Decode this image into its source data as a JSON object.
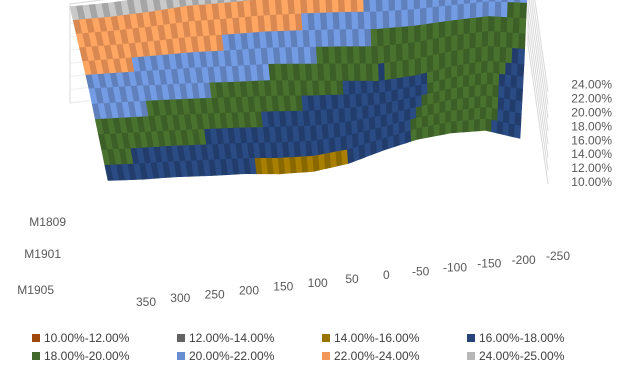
{
  "chart_data": {
    "type": "surface-3d",
    "x_ticks": [
      "350",
      "300",
      "250",
      "200",
      "150",
      "100",
      "50",
      "0",
      "-50",
      "-100",
      "-150",
      "-200",
      "-250"
    ],
    "depth_ticks": [
      "M1809",
      "M1901",
      "M1905"
    ],
    "z_ticks": [
      "10.00%",
      "12.00%",
      "14.00%",
      "16.00%",
      "18.00%",
      "20.00%",
      "22.00%",
      "24.00%"
    ],
    "zlim": [
      10,
      25
    ],
    "series": [
      {
        "name": "M1809",
        "values": [
          24.6,
          24.4,
          24.5,
          24.8,
          24.6,
          24.5,
          24.2,
          23.8,
          23.2,
          22.6,
          22.1,
          21.8,
          21.0
        ]
      },
      {
        "name": "M1901",
        "values": [
          21.6,
          21.3,
          20.9,
          20.5,
          20.0,
          19.6,
          18.9,
          18.2,
          17.5,
          17.7,
          18.4,
          18.6,
          17.4
        ]
      },
      {
        "name": "M1905",
        "values": [
          17.2,
          16.8,
          16.6,
          16.2,
          15.9,
          15.3,
          15.1,
          15.7,
          17.1,
          18.2,
          18.6,
          18.4,
          16.6
        ]
      }
    ],
    "legend": [
      {
        "label": "10.00%-12.00%",
        "color": "#9E480E"
      },
      {
        "label": "12.00%-14.00%",
        "color": "#636363"
      },
      {
        "label": "14.00%-16.00%",
        "color": "#997300"
      },
      {
        "label": "16.00%-18.00%",
        "color": "#264478"
      },
      {
        "label": "18.00%-20.00%",
        "color": "#43682B"
      },
      {
        "label": "20.00%-22.00%",
        "color": "#698ED0"
      },
      {
        "label": "22.00%-24.00%",
        "color": "#F1975A"
      },
      {
        "label": "24.00%-25.00%",
        "color": "#B7B7B7"
      }
    ],
    "legend_position": "bottom"
  }
}
